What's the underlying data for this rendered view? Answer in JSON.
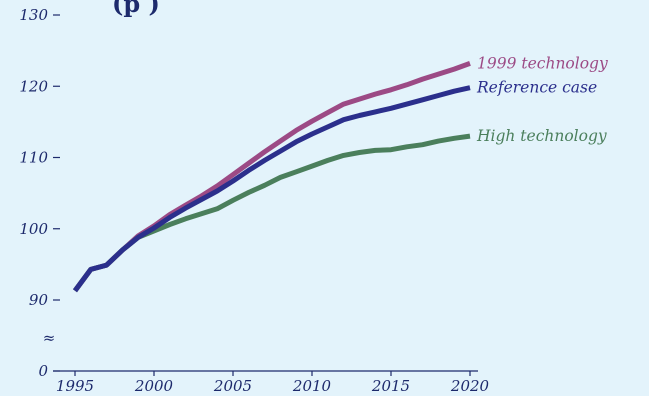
{
  "chart_data": {
    "type": "line",
    "title_fragment": "(p                     )",
    "x": [
      1995,
      1996,
      1997,
      1998,
      1999,
      2000,
      2001,
      2002,
      2003,
      2004,
      2005,
      2006,
      2007,
      2008,
      2009,
      2010,
      2011,
      2012,
      2013,
      2014,
      2015,
      2016,
      2017,
      2018,
      2019,
      2020
    ],
    "x_ticks": [
      1995,
      2000,
      2005,
      2010,
      2015,
      2020
    ],
    "y_ticks": [
      0,
      90,
      100,
      110,
      120,
      130
    ],
    "y_axis_break": true,
    "y_axis_break_symbol": "≈",
    "xlim": [
      1995,
      2020
    ],
    "ylim": [
      87,
      130
    ],
    "grid": false,
    "series": [
      {
        "name": "1999 technology",
        "color": "#9c4a85",
        "values": [
          91.3,
          94.3,
          94.9,
          97.0,
          99.0,
          100.4,
          102.0,
          103.3,
          104.6,
          106.0,
          107.6,
          109.2,
          110.8,
          112.3,
          113.8,
          115.1,
          116.3,
          117.5,
          118.2,
          118.9,
          119.5,
          120.2,
          121.0,
          121.7,
          122.4,
          123.2
        ]
      },
      {
        "name": "Reference case",
        "color": "#2b2f8c",
        "values": [
          91.3,
          94.3,
          94.9,
          97.0,
          98.8,
          100.1,
          101.6,
          102.9,
          104.1,
          105.3,
          106.7,
          108.2,
          109.6,
          110.9,
          112.2,
          113.3,
          114.3,
          115.3,
          115.9,
          116.4,
          116.9,
          117.5,
          118.1,
          118.7,
          119.3,
          119.8
        ]
      },
      {
        "name": "High technology",
        "color": "#4b7f5c",
        "values": [
          91.3,
          94.3,
          94.9,
          97.0,
          98.8,
          99.7,
          100.6,
          101.4,
          102.1,
          102.8,
          104.0,
          105.1,
          106.1,
          107.2,
          108.0,
          108.8,
          109.6,
          110.3,
          110.7,
          111.0,
          111.1,
          111.5,
          111.8,
          112.3,
          112.7,
          113.0
        ]
      }
    ]
  }
}
